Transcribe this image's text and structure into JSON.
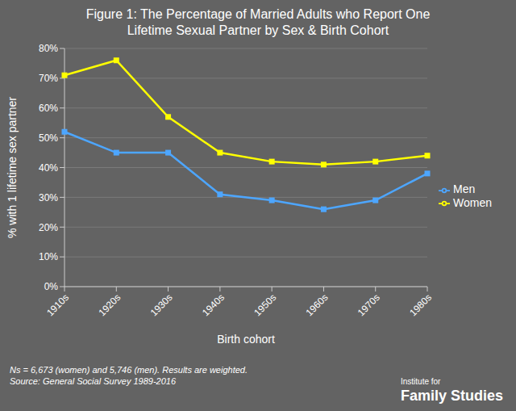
{
  "chart_data": {
    "type": "line",
    "title": "Figure 1: The Percentage of Married Adults who Report One\nLifetime Sexual Partner by Sex & Birth Cohort",
    "xlabel": "Birth cohort",
    "ylabel": "% with 1 lifetime sex partner",
    "categories": [
      "1910s",
      "1920s",
      "1930s",
      "1940s",
      "1950s",
      "1960s",
      "1970s",
      "1980s"
    ],
    "series": [
      {
        "name": "Women",
        "color": "#FFFF00",
        "values": [
          71,
          76,
          57,
          45,
          42,
          41,
          42,
          44
        ]
      },
      {
        "name": "Men",
        "color": "#4DA6FF",
        "values": [
          52,
          45,
          45,
          31,
          29,
          26,
          29,
          38
        ]
      }
    ],
    "ylim": [
      0,
      80
    ],
    "yticks": [
      {
        "value": 0,
        "label": "0%"
      },
      {
        "value": 10,
        "label": "10%"
      },
      {
        "value": 20,
        "label": "20%"
      },
      {
        "value": 30,
        "label": "30%"
      },
      {
        "value": 40,
        "label": "40%"
      },
      {
        "value": 50,
        "label": "50%"
      },
      {
        "value": 60,
        "label": "60%"
      },
      {
        "value": 70,
        "label": "70%"
      },
      {
        "value": 80,
        "label": "80%"
      }
    ],
    "grid": true,
    "legend": "right",
    "marker": "square",
    "annotations": [
      "Ns = 6,673 (women) and 5,746 (men). Results are weighted.\nSource: General Social Survey 1989-2016",
      "Institute for\nFamily Studies"
    ]
  }
}
